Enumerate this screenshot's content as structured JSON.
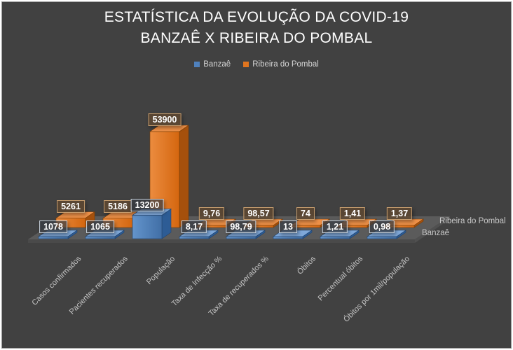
{
  "frame": {
    "background": "#414141",
    "border_outer": "#ffffff",
    "border_inner": "#9b9b9b"
  },
  "title": {
    "line1": "ESTATÍSTICA DA EVOLUÇÃO DA COVID-19",
    "line2": "BANZAÊ X RIBEIRA DO POMBAL"
  },
  "chart_data": {
    "type": "bar",
    "style": "3d",
    "title": "ESTATÍSTICA DA EVOLUÇÃO DA COVID-19 BANZAÊ X RIBEIRA DO POMBAL",
    "legend_position": "top",
    "grid": false,
    "value_axis_visible": false,
    "value_axis_max": 53900,
    "categories": [
      "Casos confirmados",
      "Pacientes recuperados",
      "População",
      "Taxa de Infecção %",
      "Taxa de recuperados %",
      "Óbitos",
      "Percentual óbitos",
      "Óbitos por 1mil/população"
    ],
    "series": [
      {
        "name": "Banzaê",
        "color": "#4F81BD",
        "values": [
          1078,
          1065,
          13200,
          8.17,
          98.79,
          13,
          1.21,
          0.98
        ],
        "labels": [
          "1078",
          "1065",
          "13200",
          "8,17",
          "98,79",
          "13",
          "1,21",
          "0,98"
        ]
      },
      {
        "name": "Ribeira do Pombal",
        "color": "#E0751F",
        "values": [
          5261,
          5186,
          53900,
          9.76,
          98.57,
          74,
          1.41,
          1.37
        ],
        "labels": [
          "5261",
          "5186",
          "53900",
          "9,76",
          "98,57",
          "74",
          "1,41",
          "1,37"
        ]
      }
    ],
    "depth_axis_labels": [
      "Ribeira do Pombal",
      "Banzaê"
    ]
  }
}
